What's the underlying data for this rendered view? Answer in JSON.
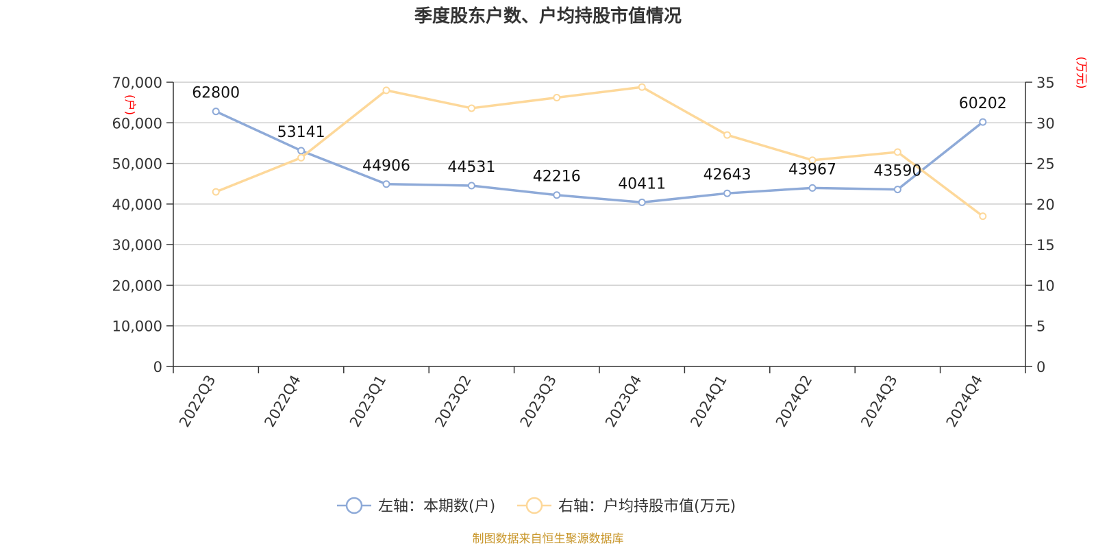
{
  "chart_data": {
    "type": "line",
    "title": "季度股东户数、户均持股市值情况",
    "categories": [
      "2022Q3",
      "2022Q4",
      "2023Q1",
      "2023Q2",
      "2023Q3",
      "2023Q4",
      "2024Q1",
      "2024Q2",
      "2024Q3",
      "2024Q4"
    ],
    "left_axis": {
      "unit": "(户)",
      "ylim": [
        0,
        70000
      ],
      "ticks": [
        0,
        10000,
        20000,
        30000,
        40000,
        50000,
        60000,
        70000
      ],
      "tick_labels": [
        "0",
        "10,000",
        "20,000",
        "30,000",
        "40,000",
        "50,000",
        "60,000",
        "70,000"
      ]
    },
    "right_axis": {
      "unit": "(万元)",
      "ylim": [
        0,
        35
      ],
      "ticks": [
        0,
        5,
        10,
        15,
        20,
        25,
        30,
        35
      ],
      "tick_labels": [
        "0",
        "5",
        "10",
        "15",
        "20",
        "25",
        "30",
        "35"
      ]
    },
    "series": [
      {
        "name": "左轴：本期数(户)",
        "axis": "left",
        "color": "#8eaad8",
        "values": [
          62800,
          53141,
          44906,
          44531,
          42216,
          40411,
          42643,
          43967,
          43590,
          60202
        ],
        "labels": [
          "62800",
          "53141",
          "44906",
          "44531",
          "42216",
          "40411",
          "42643",
          "43967",
          "43590",
          "60202"
        ]
      },
      {
        "name": "右轴：户均持股市值(万元)",
        "axis": "right",
        "color": "#fdd89a",
        "values": [
          21.5,
          25.7,
          34.0,
          31.8,
          33.1,
          34.4,
          28.5,
          25.4,
          26.4,
          18.5
        ]
      }
    ],
    "grid": true,
    "legend_position": "bottom-center",
    "source": "制图数据来自恒生聚源数据库"
  }
}
